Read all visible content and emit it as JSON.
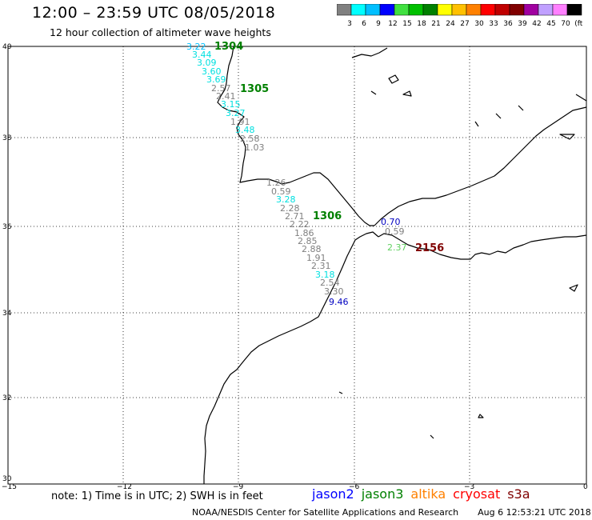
{
  "header": {
    "title": "12:00 – 23:59 UTC 08/05/2018",
    "subtitle": "12 hour collection of altimeter wave heights"
  },
  "scale": {
    "colors": [
      "#808080",
      "#00ffff",
      "#00bfff",
      "#0000ff",
      "#40e040",
      "#00c000",
      "#008000",
      "#ffff00",
      "#ffc000",
      "#ff8000",
      "#ff0000",
      "#c00000",
      "#800000",
      "#a000a0",
      "#c0a0ff",
      "#ff80ff",
      "#000000"
    ],
    "labels": [
      "3",
      "6",
      "9",
      "12",
      "15",
      "18",
      "21",
      "24",
      "27",
      "30",
      "33",
      "36",
      "39",
      "42",
      "45",
      "70",
      "(ft)"
    ]
  },
  "axes": {
    "x_ticks": [
      "−15",
      "−12",
      "−9",
      "−6",
      "−3",
      "0"
    ],
    "y_ticks": [
      "40",
      "38",
      "36",
      "34",
      "32",
      "30"
    ]
  },
  "pass_labels": [
    {
      "text": "1304",
      "color": "#008000"
    },
    {
      "text": "1305",
      "color": "#008000"
    },
    {
      "text": "1306",
      "color": "#008000"
    },
    {
      "text": "2156",
      "color": "#800000"
    }
  ],
  "wave_heights": [
    {
      "text": "3.22",
      "color": "#00bfff"
    },
    {
      "text": "3.44",
      "color": "#00e0e0"
    },
    {
      "text": "3.09",
      "color": "#00e0e0"
    },
    {
      "text": "3.60",
      "color": "#00e0e0"
    },
    {
      "text": "3.69",
      "color": "#00e0e0"
    },
    {
      "text": "2.57",
      "color": "#808080"
    },
    {
      "text": "2.41",
      "color": "#808080"
    },
    {
      "text": "3.15",
      "color": "#00e0e0"
    },
    {
      "text": "3.27",
      "color": "#00e0e0"
    },
    {
      "text": "1.91",
      "color": "#808080"
    },
    {
      "text": "3.48",
      "color": "#00e0e0"
    },
    {
      "text": "2.58",
      "color": "#808080"
    },
    {
      "text": "1.03",
      "color": "#808080"
    },
    {
      "text": "1.26",
      "color": "#808080"
    },
    {
      "text": "0.59",
      "color": "#808080"
    },
    {
      "text": "3.28",
      "color": "#00e0e0"
    },
    {
      "text": "2.28",
      "color": "#808080"
    },
    {
      "text": "2.71",
      "color": "#808080"
    },
    {
      "text": "2.22",
      "color": "#808080"
    },
    {
      "text": "1.86",
      "color": "#808080"
    },
    {
      "text": "2.85",
      "color": "#808080"
    },
    {
      "text": "2.88",
      "color": "#808080"
    },
    {
      "text": "1.91",
      "color": "#808080"
    },
    {
      "text": "2.31",
      "color": "#808080"
    },
    {
      "text": "3.18",
      "color": "#00e0e0"
    },
    {
      "text": "2.54",
      "color": "#808080"
    },
    {
      "text": "3.30",
      "color": "#808080"
    },
    {
      "text": "9.46",
      "color": "#0000c0"
    },
    {
      "text": "0.70",
      "color": "#0000c0"
    },
    {
      "text": "0.59",
      "color": "#808080"
    },
    {
      "text": "2.37",
      "color": "#60d060"
    }
  ],
  "footer": {
    "note": "note:  1) Time is in UTC;  2) SWH is in feet",
    "satellites": [
      {
        "name": "jason2",
        "color": "#0000ff"
      },
      {
        "name": "jason3",
        "color": "#008000"
      },
      {
        "name": "altika",
        "color": "#ff8000"
      },
      {
        "name": "cryosat",
        "color": "#ff0000"
      },
      {
        "name": "s3a",
        "color": "#800000"
      }
    ],
    "credit": "NOAA/NESDIS Center for Satellite Applications and Research",
    "timestamp": "Aug  6 12:53:21 UTC 2018"
  }
}
